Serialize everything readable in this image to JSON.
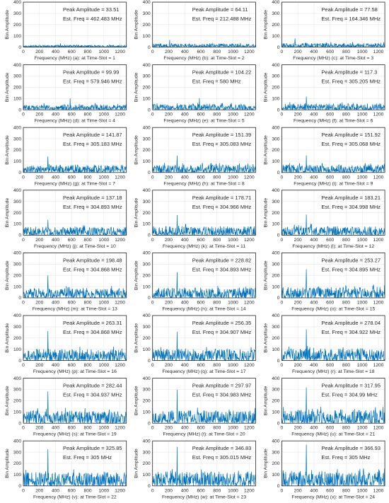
{
  "colors": {
    "trace": "#0072BD",
    "grid": "#e6e6e6",
    "axis": "#262626"
  },
  "common": {
    "ylabel": "Bin Amplitude",
    "xlabel_prefix": "Frequency (MHz)",
    "peak_label": "Peak Amplitude",
    "freq_label": "Est. Freq",
    "freq_unit": "MHz",
    "slot_label": "at Time-Slot",
    "x_ticks": [
      0,
      200,
      400,
      600,
      800,
      1000,
      1200
    ],
    "y_ticks": [
      0,
      100,
      200,
      300,
      400
    ]
  },
  "chart_data": [
    {
      "type": "line",
      "panel": "(a)",
      "slot": 1,
      "peak_amplitude": "33.51",
      "est_freq": "462.483",
      "xlim": [
        0,
        1280
      ],
      "ylim": [
        0,
        400
      ],
      "noise_level": 15,
      "peak_at": 462.483,
      "peak_value": 33.51
    },
    {
      "type": "line",
      "panel": "(b)",
      "slot": 2,
      "peak_amplitude": "64.11",
      "est_freq": "212.488",
      "xlim": [
        0,
        1280
      ],
      "ylim": [
        0,
        400
      ],
      "noise_level": 25,
      "peak_at": 212.488,
      "peak_value": 64.11
    },
    {
      "type": "line",
      "panel": "(c)",
      "slot": 3,
      "peak_amplitude": "77.58",
      "est_freq": "164.346",
      "xlim": [
        0,
        1280
      ],
      "ylim": [
        0,
        400
      ],
      "noise_level": 30,
      "peak_at": 164.346,
      "peak_value": 77.58
    },
    {
      "type": "line",
      "panel": "(d)",
      "slot": 4,
      "peak_amplitude": "99.99",
      "est_freq": "579.946",
      "xlim": [
        0,
        1280
      ],
      "ylim": [
        0,
        400
      ],
      "noise_level": 40,
      "peak_at": 579.946,
      "peak_value": 99.99
    },
    {
      "type": "line",
      "panel": "(e)",
      "slot": 5,
      "peak_amplitude": "104.22",
      "est_freq": "580",
      "xlim": [
        0,
        1280
      ],
      "ylim": [
        0,
        400
      ],
      "noise_level": 42,
      "peak_at": 580,
      "peak_value": 104.22
    },
    {
      "type": "line",
      "panel": "(f)",
      "slot": 6,
      "peak_amplitude": "117.3",
      "est_freq": "305.205",
      "xlim": [
        0,
        1280
      ],
      "ylim": [
        0,
        400
      ],
      "noise_level": 47,
      "peak_at": 305.205,
      "peak_value": 117.3
    },
    {
      "type": "line",
      "panel": "(g)",
      "slot": 7,
      "peak_amplitude": "141.87",
      "est_freq": "305.183",
      "xlim": [
        0,
        1280
      ],
      "ylim": [
        0,
        400
      ],
      "noise_level": 55,
      "peak_at": 305.183,
      "peak_value": 141.87
    },
    {
      "type": "line",
      "panel": "(h)",
      "slot": 8,
      "peak_amplitude": "151.39",
      "est_freq": "305.083",
      "xlim": [
        0,
        1280
      ],
      "ylim": [
        0,
        400
      ],
      "noise_level": 58,
      "peak_at": 305.083,
      "peak_value": 151.39
    },
    {
      "type": "line",
      "panel": "(i)",
      "slot": 9,
      "peak_amplitude": "151.92",
      "est_freq": "305.068",
      "xlim": [
        0,
        1280
      ],
      "ylim": [
        0,
        400
      ],
      "noise_level": 58,
      "peak_at": 305.068,
      "peak_value": 151.92
    },
    {
      "type": "line",
      "panel": "(j)",
      "slot": 10,
      "peak_amplitude": "137.18",
      "est_freq": "304.893",
      "xlim": [
        0,
        1280
      ],
      "ylim": [
        0,
        400
      ],
      "noise_level": 62,
      "peak_at": 304.893,
      "peak_value": 137.18
    },
    {
      "type": "line",
      "panel": "(k)",
      "slot": 11,
      "peak_amplitude": "178.71",
      "est_freq": "304.966",
      "xlim": [
        0,
        1280
      ],
      "ylim": [
        0,
        400
      ],
      "noise_level": 66,
      "peak_at": 304.966,
      "peak_value": 178.71
    },
    {
      "type": "line",
      "panel": "(l)",
      "slot": 12,
      "peak_amplitude": "183.21",
      "est_freq": "304.998",
      "xlim": [
        0,
        1280
      ],
      "ylim": [
        0,
        400
      ],
      "noise_level": 68,
      "peak_at": 304.998,
      "peak_value": 183.21
    },
    {
      "type": "line",
      "panel": "(m)",
      "slot": 13,
      "peak_amplitude": "198.48",
      "est_freq": "304.868",
      "xlim": [
        0,
        1280
      ],
      "ylim": [
        0,
        400
      ],
      "noise_level": 72,
      "peak_at": 304.868,
      "peak_value": 198.48
    },
    {
      "type": "line",
      "panel": "(n)",
      "slot": 14,
      "peak_amplitude": "228.82",
      "est_freq": "304.893",
      "xlim": [
        0,
        1280
      ],
      "ylim": [
        0,
        400
      ],
      "noise_level": 76,
      "peak_at": 304.893,
      "peak_value": 228.82
    },
    {
      "type": "line",
      "panel": "(o)",
      "slot": 15,
      "peak_amplitude": "253.27",
      "est_freq": "304.895",
      "xlim": [
        0,
        1280
      ],
      "ylim": [
        0,
        400
      ],
      "noise_level": 80,
      "peak_at": 304.895,
      "peak_value": 253.27
    },
    {
      "type": "line",
      "panel": "(p)",
      "slot": 16,
      "peak_amplitude": "263.31",
      "est_freq": "304.868",
      "xlim": [
        0,
        1280
      ],
      "ylim": [
        0,
        400
      ],
      "noise_level": 84,
      "peak_at": 304.868,
      "peak_value": 263.31
    },
    {
      "type": "line",
      "panel": "(q)",
      "slot": 17,
      "peak_amplitude": "256.35",
      "est_freq": "304.907",
      "xlim": [
        0,
        1280
      ],
      "ylim": [
        0,
        400
      ],
      "noise_level": 86,
      "peak_at": 304.907,
      "peak_value": 256.35
    },
    {
      "type": "line",
      "panel": "(r)",
      "slot": 18,
      "peak_amplitude": "278.04",
      "est_freq": "304.922",
      "xlim": [
        0,
        1280
      ],
      "ylim": [
        0,
        400
      ],
      "noise_level": 90,
      "peak_at": 304.922,
      "peak_value": 278.04
    },
    {
      "type": "line",
      "panel": "(s)",
      "slot": 19,
      "peak_amplitude": "282.44",
      "est_freq": "304.937",
      "xlim": [
        0,
        1280
      ],
      "ylim": [
        0,
        400
      ],
      "noise_level": 92,
      "peak_at": 304.937,
      "peak_value": 282.44
    },
    {
      "type": "line",
      "panel": "(t)",
      "slot": 20,
      "peak_amplitude": "297.97",
      "est_freq": "304.983",
      "xlim": [
        0,
        1280
      ],
      "ylim": [
        0,
        400
      ],
      "noise_level": 95,
      "peak_at": 304.983,
      "peak_value": 297.97
    },
    {
      "type": "line",
      "panel": "(u)",
      "slot": 21,
      "peak_amplitude": "317.95",
      "est_freq": "304.99",
      "xlim": [
        0,
        1280
      ],
      "ylim": [
        0,
        400
      ],
      "noise_level": 98,
      "peak_at": 304.99,
      "peak_value": 317.95
    },
    {
      "type": "line",
      "panel": "(v)",
      "slot": 22,
      "peak_amplitude": "325.85",
      "est_freq": "305",
      "xlim": [
        0,
        1280
      ],
      "ylim": [
        0,
        400
      ],
      "noise_level": 102,
      "peak_at": 305,
      "peak_value": 325.85
    },
    {
      "type": "line",
      "panel": "(w)",
      "slot": 23,
      "peak_amplitude": "346.83",
      "est_freq": "305.015",
      "xlim": [
        0,
        1280
      ],
      "ylim": [
        0,
        400
      ],
      "noise_level": 106,
      "peak_at": 305.015,
      "peak_value": 346.83
    },
    {
      "type": "line",
      "panel": "(x)",
      "slot": 24,
      "peak_amplitude": "366.93",
      "est_freq": "305",
      "xlim": [
        0,
        1280
      ],
      "ylim": [
        0,
        400
      ],
      "noise_level": 110,
      "peak_at": 305,
      "peak_value": 366.93
    }
  ]
}
